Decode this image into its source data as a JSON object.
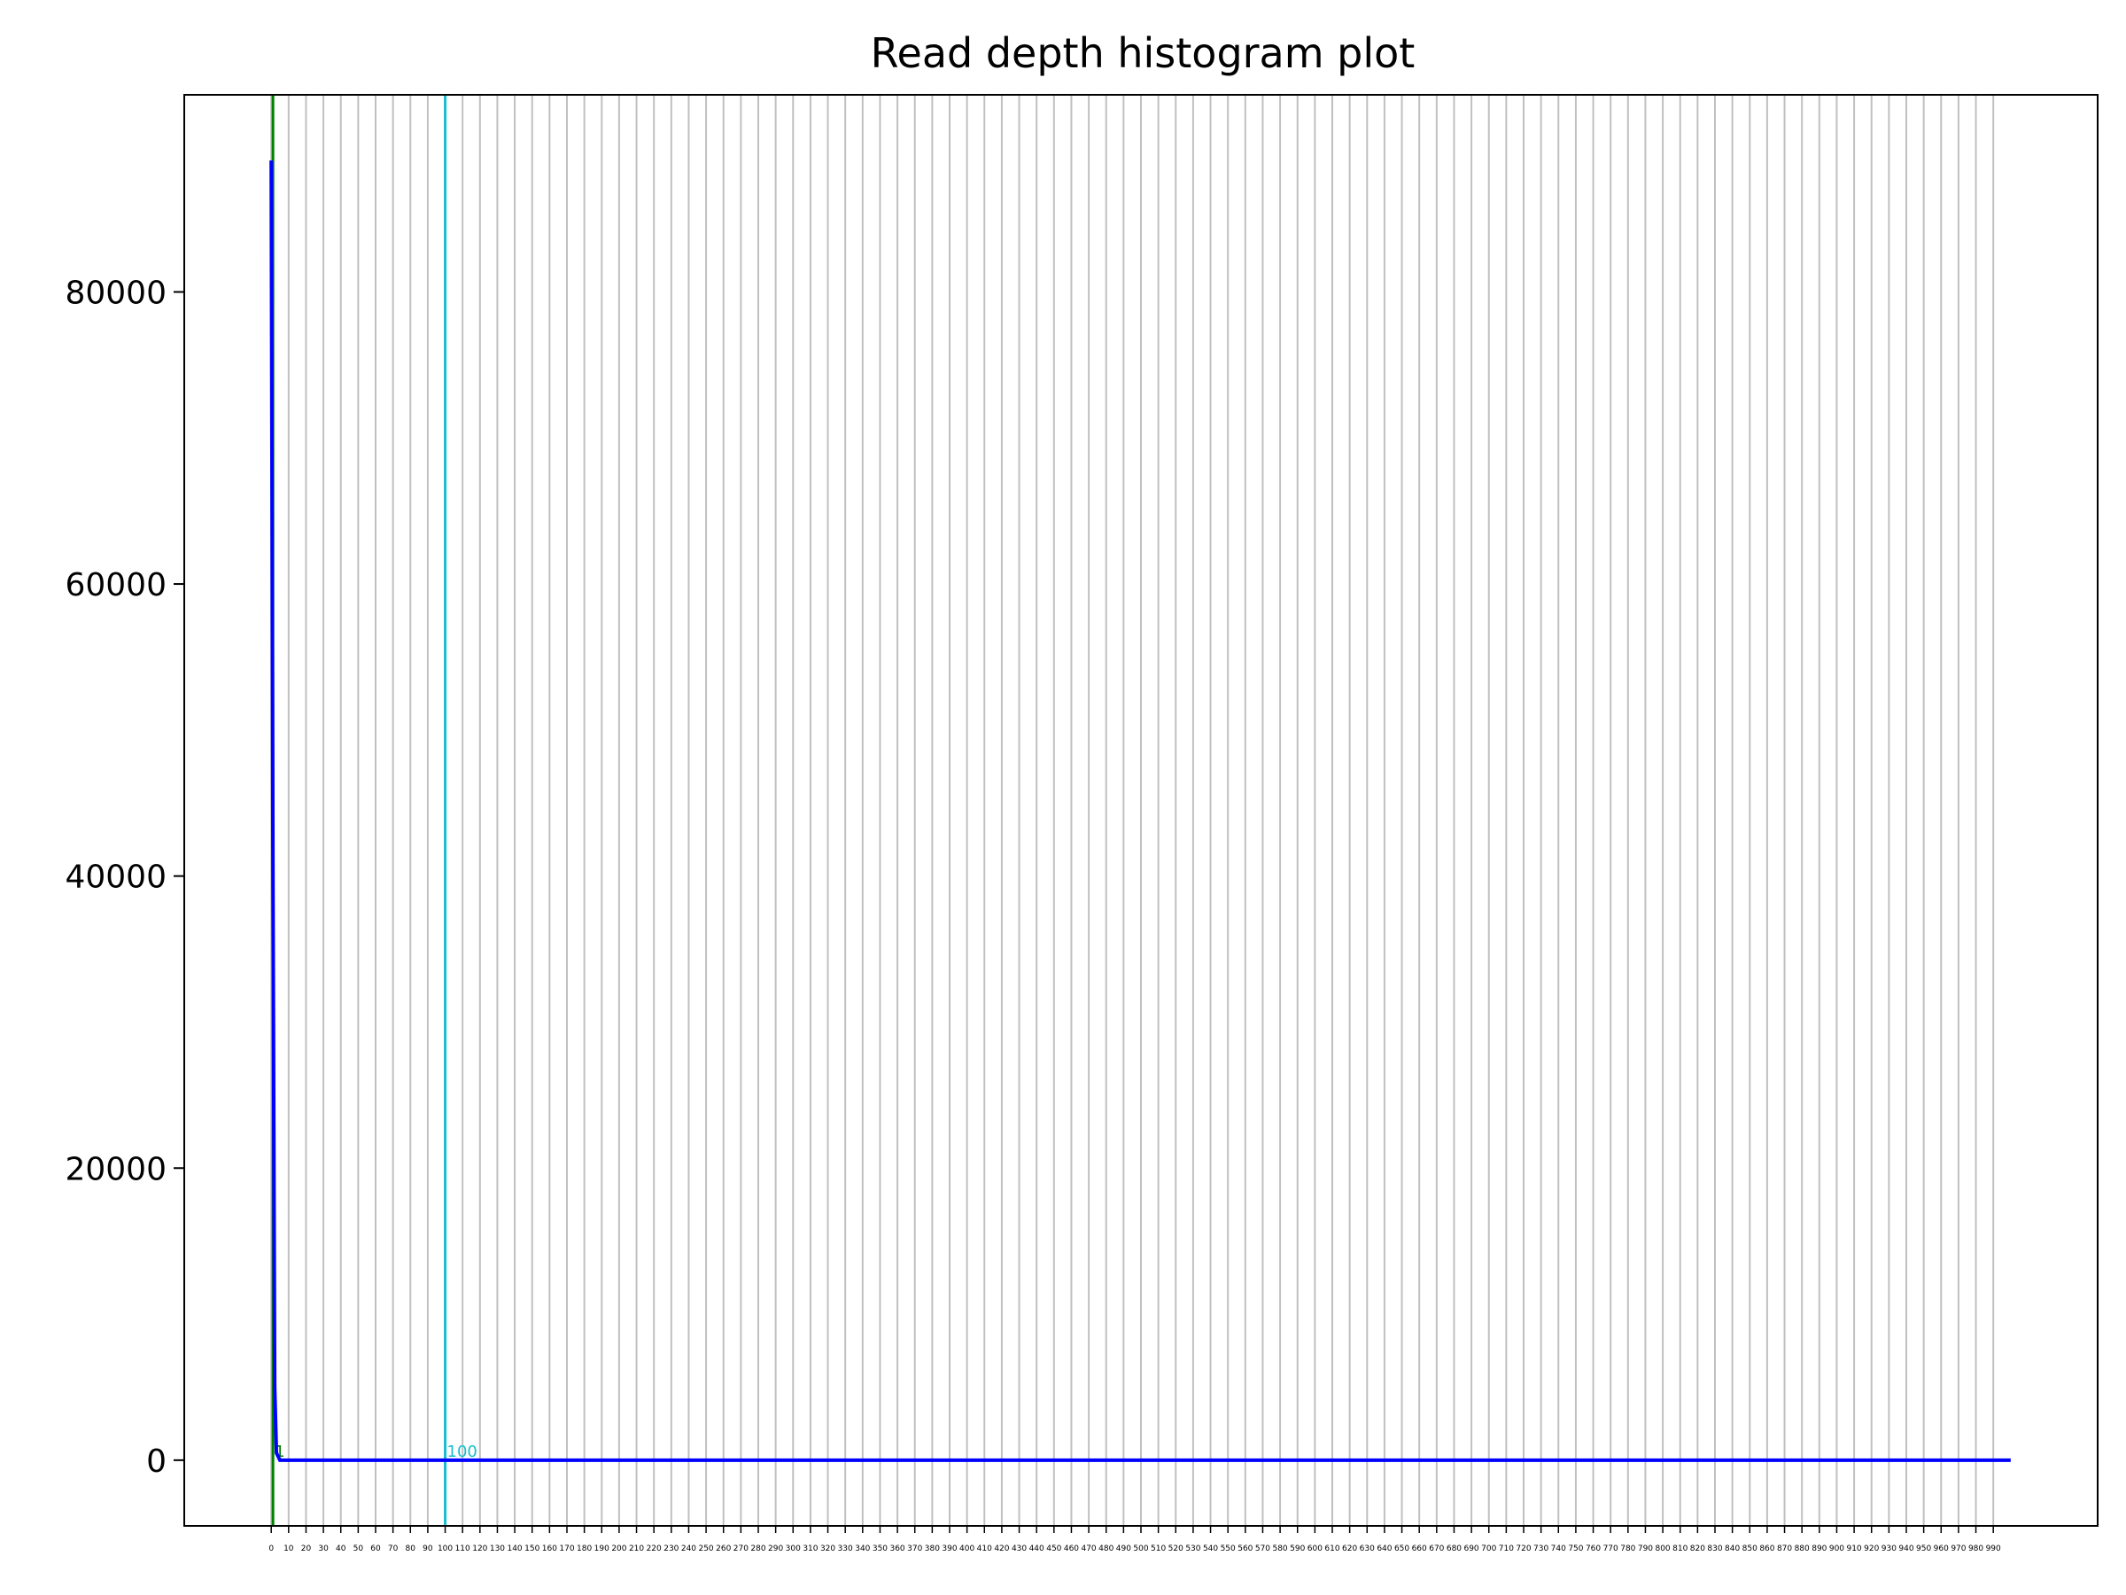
{
  "chart_data": {
    "type": "line",
    "title": "Read depth histogram plot",
    "xlabel": "",
    "ylabel": "",
    "xlim": [
      -50,
      1050
    ],
    "ylim": [
      -4500,
      93500
    ],
    "grid": {
      "x": true,
      "y": false
    },
    "x_tick_values": [
      0,
      10,
      20,
      30,
      40,
      50,
      60,
      70,
      80,
      90,
      100,
      110,
      120,
      130,
      140,
      150,
      160,
      170,
      180,
      190,
      200,
      210,
      220,
      230,
      240,
      250,
      260,
      270,
      280,
      290,
      300,
      310,
      320,
      330,
      340,
      350,
      360,
      370,
      380,
      390,
      400,
      410,
      420,
      430,
      440,
      450,
      460,
      470,
      480,
      490,
      500,
      510,
      520,
      530,
      540,
      550,
      560,
      570,
      580,
      590,
      600,
      610,
      620,
      630,
      640,
      650,
      660,
      670,
      680,
      690,
      700,
      710,
      720,
      730,
      740,
      750,
      760,
      770,
      780,
      790,
      800,
      810,
      820,
      830,
      840,
      850,
      860,
      870,
      880,
      890,
      900,
      910,
      920,
      930,
      940,
      950,
      960,
      970,
      980,
      990
    ],
    "y_tick_values": [
      0,
      20000,
      40000,
      60000,
      80000
    ],
    "series": [
      {
        "color": "#0000ff",
        "x": [
          0,
          1,
          2,
          3,
          5,
          10,
          1000
        ],
        "y": [
          89000,
          40000,
          5000,
          500,
          0,
          0,
          0
        ]
      }
    ],
    "vlines": [
      {
        "x": 1,
        "color": "#008000",
        "label": "1"
      },
      {
        "x": 100,
        "color": "#17becf",
        "label": "100"
      }
    ],
    "colors": {
      "grid": "#c0c0c0",
      "axes": "#000000"
    }
  }
}
